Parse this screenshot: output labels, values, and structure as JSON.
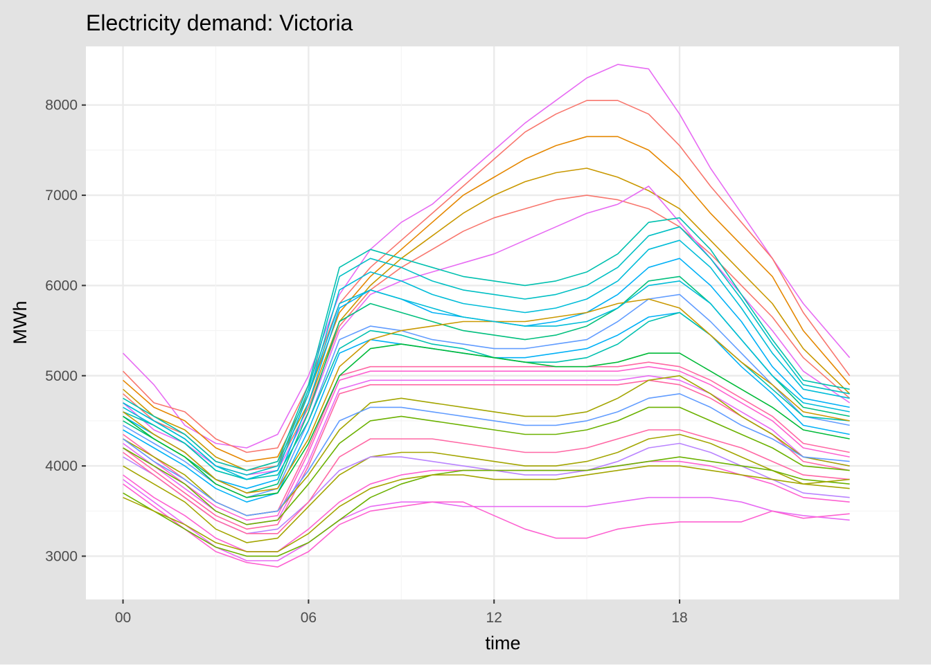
{
  "chart_data": {
    "type": "line",
    "title": "Electricity demand: Victoria",
    "xlabel": "time",
    "ylabel": "MWh",
    "x_ticks": [
      "00",
      "06",
      "12",
      "18"
    ],
    "y_ticks": [
      "3000",
      "4000",
      "5000",
      "6000",
      "7000",
      "8000"
    ],
    "x_unit": "hour of day",
    "xlim": [
      -1.2,
      25.1
    ],
    "ylim": [
      2520,
      8650
    ],
    "grid": true,
    "legend": "none",
    "series_count_note": "approx. one line per day; representative profiles listed",
    "palette": [
      "#f8766d",
      "#e58700",
      "#c99800",
      "#a3a500",
      "#6bb100",
      "#00ba38",
      "#00bf7d",
      "#00c0af",
      "#00bcd8",
      "#00b0f6",
      "#619cff",
      "#b983ff",
      "#e76bf3",
      "#fd61d1",
      "#ff67a4"
    ],
    "hours": [
      0,
      1,
      2,
      3,
      4,
      5,
      6,
      7,
      8,
      9,
      10,
      11,
      12,
      13,
      14,
      15,
      16,
      17,
      18,
      19,
      20,
      21,
      22,
      23.5
    ],
    "series": [
      {
        "color": "#e76bf3",
        "values": [
          5250,
          4900,
          4450,
          4250,
          4200,
          4350,
          5000,
          5900,
          6400,
          6700,
          6900,
          7200,
          7500,
          7800,
          8050,
          8300,
          8450,
          8400,
          7900,
          7300,
          6800,
          6300,
          5800,
          5200
        ]
      },
      {
        "color": "#f8766d",
        "values": [
          5050,
          4700,
          4600,
          4300,
          4150,
          4200,
          4900,
          5800,
          6200,
          6500,
          6800,
          7100,
          7400,
          7700,
          7900,
          8050,
          8050,
          7900,
          7550,
          7100,
          6700,
          6300,
          5700,
          5000
        ]
      },
      {
        "color": "#e58700",
        "values": [
          4950,
          4650,
          4500,
          4200,
          4050,
          4100,
          4800,
          5700,
          6100,
          6400,
          6700,
          7000,
          7200,
          7400,
          7550,
          7650,
          7650,
          7500,
          7200,
          6800,
          6450,
          6100,
          5500,
          4900
        ]
      },
      {
        "color": "#c99800",
        "values": [
          4850,
          4550,
          4400,
          4100,
          3950,
          4050,
          4700,
          5600,
          6000,
          6300,
          6550,
          6800,
          7000,
          7150,
          7250,
          7300,
          7200,
          7050,
          6850,
          6500,
          6150,
          5800,
          5300,
          4800
        ]
      },
      {
        "color": "#f8766d",
        "values": [
          4800,
          4500,
          4350,
          4050,
          3950,
          4000,
          4650,
          5550,
          5950,
          6200,
          6400,
          6600,
          6750,
          6850,
          6950,
          7000,
          6950,
          6850,
          6650,
          6350,
          6000,
          5650,
          5200,
          4750
        ]
      },
      {
        "color": "#e76bf3",
        "values": [
          4700,
          4400,
          4250,
          4000,
          3900,
          3950,
          4600,
          5500,
          5900,
          6050,
          6150,
          6250,
          6350,
          6500,
          6650,
          6800,
          6900,
          7100,
          6700,
          6300,
          5900,
          5500,
          5050,
          4700
        ]
      },
      {
        "color": "#00c0af",
        "values": [
          4750,
          4550,
          4350,
          4050,
          3950,
          4050,
          4900,
          6200,
          6400,
          6300,
          6200,
          6100,
          6050,
          6000,
          6050,
          6150,
          6350,
          6700,
          6750,
          6400,
          5900,
          5400,
          4950,
          4850
        ]
      },
      {
        "color": "#00bfc4",
        "values": [
          4700,
          4500,
          4300,
          4000,
          3900,
          4000,
          4850,
          6100,
          6300,
          6200,
          6050,
          5950,
          5900,
          5850,
          5900,
          6000,
          6200,
          6550,
          6650,
          6300,
          5850,
          5350,
          4900,
          4800
        ]
      },
      {
        "color": "#00bcd8",
        "values": [
          4650,
          4450,
          4250,
          3950,
          3850,
          3950,
          4800,
          5950,
          6150,
          6050,
          5900,
          5800,
          5750,
          5700,
          5750,
          5850,
          6050,
          6400,
          6500,
          6200,
          5750,
          5250,
          4850,
          4750
        ]
      },
      {
        "color": "#00b0f6",
        "values": [
          4550,
          4350,
          4150,
          3850,
          3750,
          3850,
          4700,
          5750,
          5950,
          5850,
          5700,
          5650,
          5600,
          5550,
          5600,
          5700,
          5900,
          6200,
          6300,
          6000,
          5600,
          5100,
          4750,
          4650
        ]
      },
      {
        "color": "#00bf7d",
        "values": [
          4500,
          4300,
          4100,
          3850,
          3700,
          3800,
          4600,
          5600,
          5800,
          5700,
          5600,
          5500,
          5450,
          5400,
          5450,
          5550,
          5750,
          6050,
          6100,
          5800,
          5400,
          5000,
          4650,
          4550
        ]
      },
      {
        "color": "#619cff",
        "values": [
          4450,
          4250,
          4050,
          3800,
          3650,
          3750,
          4500,
          5400,
          5550,
          5500,
          5400,
          5350,
          5300,
          5300,
          5350,
          5400,
          5600,
          5850,
          5900,
          5600,
          5250,
          4900,
          4550,
          4450
        ]
      },
      {
        "color": "#00b0f6",
        "values": [
          4400,
          4200,
          4000,
          3750,
          3600,
          3700,
          4400,
          5250,
          5400,
          5350,
          5300,
          5250,
          5200,
          5200,
          5250,
          5300,
          5450,
          5650,
          5700,
          5450,
          5100,
          4800,
          4450,
          4350
        ]
      },
      {
        "color": "#ff67a4",
        "values": [
          4350,
          4100,
          3850,
          3600,
          3450,
          3500,
          4200,
          5000,
          5100,
          5100,
          5100,
          5100,
          5100,
          5100,
          5100,
          5100,
          5100,
          5150,
          5100,
          4950,
          4750,
          4550,
          4250,
          4150
        ]
      },
      {
        "color": "#fd61d1",
        "values": [
          4300,
          4050,
          3800,
          3550,
          3400,
          3450,
          4150,
          4950,
          5050,
          5050,
          5050,
          5050,
          5050,
          5050,
          5050,
          5050,
          5050,
          5100,
          5050,
          4900,
          4700,
          4500,
          4200,
          4100
        ]
      },
      {
        "color": "#e76bf3",
        "values": [
          4250,
          4000,
          3750,
          3500,
          3350,
          3400,
          4050,
          4850,
          4950,
          4950,
          4950,
          4950,
          4950,
          4950,
          4950,
          4950,
          4950,
          5000,
          4950,
          4800,
          4600,
          4400,
          4100,
          4000
        ]
      },
      {
        "color": "#ff67a4",
        "values": [
          4200,
          3950,
          3700,
          3450,
          3300,
          3350,
          4000,
          4800,
          4900,
          4900,
          4900,
          4900,
          4900,
          4900,
          4900,
          4900,
          4900,
          4950,
          4900,
          4750,
          4550,
          4350,
          4050,
          3950
        ]
      },
      {
        "color": "#00c0af",
        "values": [
          4600,
          4450,
          4250,
          3950,
          3850,
          3900,
          4500,
          5300,
          5500,
          5450,
          5350,
          5300,
          5200,
          5150,
          5150,
          5200,
          5350,
          5600,
          5700,
          5450,
          5150,
          4850,
          4550,
          4500
        ]
      },
      {
        "color": "#a3a500",
        "values": [
          4300,
          4100,
          3900,
          3600,
          3450,
          3500,
          3900,
          4400,
          4700,
          4750,
          4700,
          4650,
          4600,
          4550,
          4550,
          4600,
          4750,
          4950,
          5000,
          4800,
          4550,
          4350,
          4100,
          4000
        ]
      },
      {
        "color": "#6bb100",
        "values": [
          4200,
          4000,
          3800,
          3500,
          3350,
          3400,
          3800,
          4250,
          4500,
          4550,
          4500,
          4450,
          4400,
          4350,
          4350,
          4400,
          4500,
          4650,
          4650,
          4500,
          4350,
          4200,
          4000,
          3950
        ]
      },
      {
        "color": "#a3a500",
        "values": [
          4000,
          3800,
          3600,
          3300,
          3150,
          3200,
          3550,
          3900,
          4100,
          4150,
          4150,
          4100,
          4050,
          4000,
          4000,
          4050,
          4150,
          4300,
          4350,
          4250,
          4100,
          3950,
          3800,
          3750
        ]
      },
      {
        "color": "#b983ff",
        "values": [
          4100,
          3900,
          3650,
          3400,
          3250,
          3300,
          3600,
          3950,
          4100,
          4100,
          4050,
          4000,
          3950,
          3900,
          3900,
          3950,
          4050,
          4200,
          4250,
          4150,
          4000,
          3850,
          3700,
          3650
        ]
      },
      {
        "color": "#fd61d1",
        "values": [
          3900,
          3650,
          3450,
          3200,
          3050,
          3050,
          3300,
          3600,
          3800,
          3900,
          3950,
          3950,
          3950,
          3950,
          3950,
          3950,
          4000,
          4050,
          4050,
          4000,
          3900,
          3800,
          3650,
          3600
        ]
      },
      {
        "color": "#e76bf3",
        "values": [
          3850,
          3600,
          3350,
          3100,
          2950,
          2950,
          3150,
          3400,
          3550,
          3600,
          3600,
          3550,
          3550,
          3550,
          3550,
          3550,
          3600,
          3650,
          3650,
          3650,
          3600,
          3500,
          3450,
          3400
        ]
      },
      {
        "color": "#fd61d1",
        "values": [
          3800,
          3550,
          3300,
          3050,
          2930,
          2880,
          3050,
          3350,
          3500,
          3550,
          3600,
          3600,
          3450,
          3300,
          3200,
          3200,
          3300,
          3350,
          3380,
          3380,
          3380,
          3500,
          3420,
          3470
        ]
      },
      {
        "color": "#6bb100",
        "values": [
          3700,
          3500,
          3300,
          3100,
          3000,
          3000,
          3150,
          3400,
          3650,
          3800,
          3900,
          3950,
          3950,
          3950,
          3950,
          3950,
          4000,
          4050,
          4100,
          4050,
          4000,
          3950,
          3850,
          3800
        ]
      },
      {
        "color": "#c99800",
        "values": [
          4600,
          4350,
          4150,
          3850,
          3700,
          3750,
          4300,
          5100,
          5400,
          5500,
          5550,
          5600,
          5600,
          5600,
          5650,
          5700,
          5800,
          5850,
          5750,
          5450,
          5150,
          4900,
          4600,
          4500
        ]
      },
      {
        "color": "#00ba38",
        "values": [
          4550,
          4300,
          4100,
          3800,
          3650,
          3700,
          4250,
          5000,
          5300,
          5350,
          5300,
          5250,
          5200,
          5150,
          5100,
          5100,
          5150,
          5250,
          5250,
          5050,
          4850,
          4650,
          4400,
          4300
        ]
      },
      {
        "color": "#00bcd8",
        "values": [
          4700,
          4500,
          4300,
          4000,
          3850,
          3950,
          4800,
          5800,
          5950,
          5850,
          5750,
          5650,
          5600,
          5550,
          5550,
          5600,
          5750,
          6000,
          6050,
          5800,
          5400,
          5000,
          4700,
          4600
        ]
      },
      {
        "color": "#619cff",
        "values": [
          4300,
          4050,
          3850,
          3600,
          3450,
          3500,
          3950,
          4500,
          4650,
          4650,
          4600,
          4550,
          4500,
          4450,
          4450,
          4500,
          4600,
          4750,
          4800,
          4650,
          4450,
          4300,
          4100,
          4050
        ]
      },
      {
        "color": "#ff67a4",
        "values": [
          4150,
          3900,
          3650,
          3400,
          3250,
          3250,
          3600,
          4100,
          4300,
          4300,
          4300,
          4250,
          4200,
          4150,
          4150,
          4200,
          4300,
          4400,
          4400,
          4300,
          4200,
          4050,
          3900,
          3850
        ]
      },
      {
        "color": "#a3a500",
        "values": [
          3650,
          3500,
          3350,
          3150,
          3050,
          3050,
          3250,
          3550,
          3750,
          3850,
          3900,
          3900,
          3850,
          3850,
          3850,
          3900,
          3950,
          4000,
          4000,
          3950,
          3900,
          3850,
          3800,
          3850
        ]
      }
    ]
  }
}
